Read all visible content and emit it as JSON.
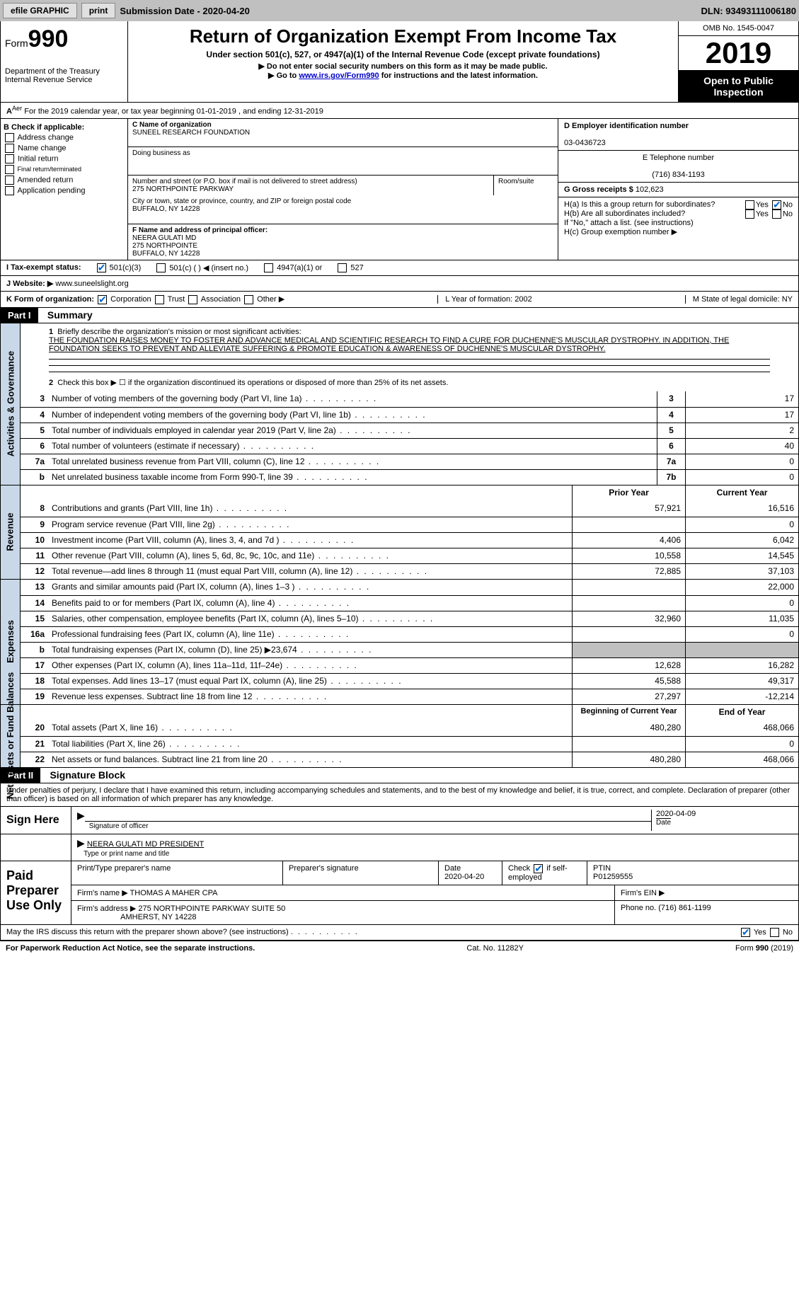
{
  "topbar": {
    "efile": "efile GRAPHIC",
    "print": "print",
    "submission": "Submission Date - 2020-04-20",
    "dln": "DLN: 93493111006180"
  },
  "header": {
    "form": "Form",
    "num": "990",
    "dept": "Department of the Treasury Internal Revenue Service",
    "dept_sup": "Aer",
    "title": "Return of Organization Exempt From Income Tax",
    "sub": "Under section 501(c), 527, or 4947(a)(1) of the Internal Revenue Code (except private foundations)",
    "inst1": "▶ Do not enter social security numbers on this form as it may be made public.",
    "inst2_a": "▶ Go to ",
    "inst2_link": "www.irs.gov/Form990",
    "inst2_b": " for instructions and the latest information.",
    "omb": "OMB No. 1545-0047",
    "year": "2019",
    "inspect": "Open to Public Inspection"
  },
  "row_a": "For the 2019 calendar year, or tax year beginning 01-01-2019   , and ending 12-31-2019",
  "col_b": {
    "hdr": "B Check if applicable:",
    "items": [
      "Address change",
      "Name change",
      "Initial return",
      "Final return/terminated",
      "Amended return",
      "Application pending"
    ]
  },
  "org": {
    "c_lbl": "C Name of organization",
    "name": "SUNEEL RESEARCH FOUNDATION",
    "dba_lbl": "Doing business as",
    "addr_lbl": "Number and street (or P.O. box if mail is not delivered to street address)",
    "addr": "275 NORTHPOINTE PARKWAY",
    "room_lbl": "Room/suite",
    "city_lbl": "City or town, state or province, country, and ZIP or foreign postal code",
    "city": "BUFFALO, NY  14228",
    "f_lbl": "F  Name and address of principal officer:",
    "f_name": "NEERA GULATI MD",
    "f_addr1": "275 NORTHPOINTE",
    "f_addr2": "BUFFALO, NY  14228"
  },
  "col_d": {
    "d_lbl": "D Employer identification number",
    "d_val": "03-0436723",
    "e_lbl": "E Telephone number",
    "e_val": "(716) 834-1193",
    "g_lbl": "G Gross receipts $",
    "g_val": "102,623",
    "ha": "H(a)  Is this a group return for subordinates?",
    "hb": "H(b)  Are all subordinates included?",
    "hb_note": "If \"No,\" attach a list. (see instructions)",
    "hc": "H(c)  Group exemption number ▶"
  },
  "row_i": {
    "lbl": "I  Tax-exempt status:",
    "o1": "501(c)(3)",
    "o2": "501(c) (  ) ◀ (insert no.)",
    "o3": "4947(a)(1) or",
    "o4": "527"
  },
  "row_j": {
    "lbl": "J  Website: ▶",
    "val": "www.suneelslight.org"
  },
  "row_k": {
    "lbl": "K Form of organization:",
    "corp": "Corporation",
    "trust": "Trust",
    "assoc": "Association",
    "other": "Other ▶"
  },
  "row_lm": {
    "l": "L Year of formation: 2002",
    "m": "M State of legal domicile: NY"
  },
  "part1": {
    "hdr": "Part I",
    "title": "Summary",
    "l1": "Briefly describe the organization's mission or most significant activities:",
    "mission": "THE FOUNDATION RAISES MONEY TO FOSTER AND ADVANCE MEDICAL AND SCIENTIFIC RESEARCH TO FIND A CURE FOR DUCHENNE'S MUSCULAR DYSTROPHY. IN ADDITION, THE FOUNDATION SEEKS TO PREVENT AND ALLEVIATE SUFFERING & PROMOTE EDUCATION & AWARENESS OF DUCHENNE'S MUSCULAR DYSTROPHY.",
    "l2": "Check this box ▶ ☐  if the organization discontinued its operations or disposed of more than 25% of its net assets."
  },
  "gov_lines": [
    {
      "n": "3",
      "t": "Number of voting members of the governing body (Part VI, line 1a)",
      "b": "3",
      "v": "17"
    },
    {
      "n": "4",
      "t": "Number of independent voting members of the governing body (Part VI, line 1b)",
      "b": "4",
      "v": "17"
    },
    {
      "n": "5",
      "t": "Total number of individuals employed in calendar year 2019 (Part V, line 2a)",
      "b": "5",
      "v": "2"
    },
    {
      "n": "6",
      "t": "Total number of volunteers (estimate if necessary)",
      "b": "6",
      "v": "40"
    },
    {
      "n": "7a",
      "t": "Total unrelated business revenue from Part VIII, column (C), line 12",
      "b": "7a",
      "v": "0"
    },
    {
      "n": "b",
      "t": "Net unrelated business taxable income from Form 990-T, line 39",
      "b": "7b",
      "v": "0"
    }
  ],
  "rev_hdr": {
    "py": "Prior Year",
    "cy": "Current Year"
  },
  "rev_lines": [
    {
      "n": "8",
      "t": "Contributions and grants (Part VIII, line 1h)",
      "py": "57,921",
      "cy": "16,516"
    },
    {
      "n": "9",
      "t": "Program service revenue (Part VIII, line 2g)",
      "py": "",
      "cy": "0"
    },
    {
      "n": "10",
      "t": "Investment income (Part VIII, column (A), lines 3, 4, and 7d )",
      "py": "4,406",
      "cy": "6,042"
    },
    {
      "n": "11",
      "t": "Other revenue (Part VIII, column (A), lines 5, 6d, 8c, 9c, 10c, and 11e)",
      "py": "10,558",
      "cy": "14,545"
    },
    {
      "n": "12",
      "t": "Total revenue—add lines 8 through 11 (must equal Part VIII, column (A), line 12)",
      "py": "72,885",
      "cy": "37,103"
    }
  ],
  "exp_lines": [
    {
      "n": "13",
      "t": "Grants and similar amounts paid (Part IX, column (A), lines 1–3 )",
      "py": "",
      "cy": "22,000"
    },
    {
      "n": "14",
      "t": "Benefits paid to or for members (Part IX, column (A), line 4)",
      "py": "",
      "cy": "0"
    },
    {
      "n": "15",
      "t": "Salaries, other compensation, employee benefits (Part IX, column (A), lines 5–10)",
      "py": "32,960",
      "cy": "11,035"
    },
    {
      "n": "16a",
      "t": "Professional fundraising fees (Part IX, column (A), line 11e)",
      "py": "",
      "cy": "0"
    },
    {
      "n": "b",
      "t": "Total fundraising expenses (Part IX, column (D), line 25) ▶23,674",
      "py": "shade",
      "cy": "shade"
    },
    {
      "n": "17",
      "t": "Other expenses (Part IX, column (A), lines 11a–11d, 11f–24e)",
      "py": "12,628",
      "cy": "16,282"
    },
    {
      "n": "18",
      "t": "Total expenses. Add lines 13–17 (must equal Part IX, column (A), line 25)",
      "py": "45,588",
      "cy": "49,317"
    },
    {
      "n": "19",
      "t": "Revenue less expenses. Subtract line 18 from line 12",
      "py": "27,297",
      "cy": "-12,214"
    }
  ],
  "net_hdr": {
    "py": "Beginning of Current Year",
    "cy": "End of Year"
  },
  "net_lines": [
    {
      "n": "20",
      "t": "Total assets (Part X, line 16)",
      "py": "480,280",
      "cy": "468,066"
    },
    {
      "n": "21",
      "t": "Total liabilities (Part X, line 26)",
      "py": "",
      "cy": "0"
    },
    {
      "n": "22",
      "t": "Net assets or fund balances. Subtract line 21 from line 20",
      "py": "480,280",
      "cy": "468,066"
    }
  ],
  "vtabs": {
    "gov": "Activities & Governance",
    "rev": "Revenue",
    "exp": "Expenses",
    "net": "Net Assets or Fund Balances"
  },
  "part2": {
    "hdr": "Part II",
    "title": "Signature Block",
    "penalty": "Under penalties of perjury, I declare that I have examined this return, including accompanying schedules and statements, and to the best of my knowledge and belief, it is true, correct, and complete. Declaration of preparer (other than officer) is based on all information of which preparer has any knowledge.",
    "sign": "Sign Here",
    "sig_off": "Signature of officer",
    "date": "Date",
    "date_val": "2020-04-09",
    "name": "NEERA GULATI MD  PRESIDENT",
    "name_lbl": "Type or print name and title",
    "paid": "Paid Preparer Use Only",
    "prep_lbl": "Print/Type preparer's name",
    "prep_sig": "Preparer's signature",
    "prep_date": "Date",
    "prep_date_v": "2020-04-20",
    "check": "Check ☑ if self-employed",
    "ptin_lbl": "PTIN",
    "ptin": "P01259555",
    "firm_lbl": "Firm's name  ▶",
    "firm": "THOMAS A MAHER CPA",
    "ein_lbl": "Firm's EIN ▶",
    "firm_addr_lbl": "Firm's address ▶",
    "firm_addr": "275 NORTHPOINTE PARKWAY SUITE 50",
    "firm_city": "AMHERST, NY  14228",
    "phone_lbl": "Phone no.",
    "phone": "(716) 861-1199",
    "discuss": "May the IRS discuss this return with the preparer shown above? (see instructions)",
    "yes": "Yes",
    "no": "No"
  },
  "footer": {
    "l": "For Paperwork Reduction Act Notice, see the separate instructions.",
    "m": "Cat. No. 11282Y",
    "r": "Form 990 (2019)"
  }
}
